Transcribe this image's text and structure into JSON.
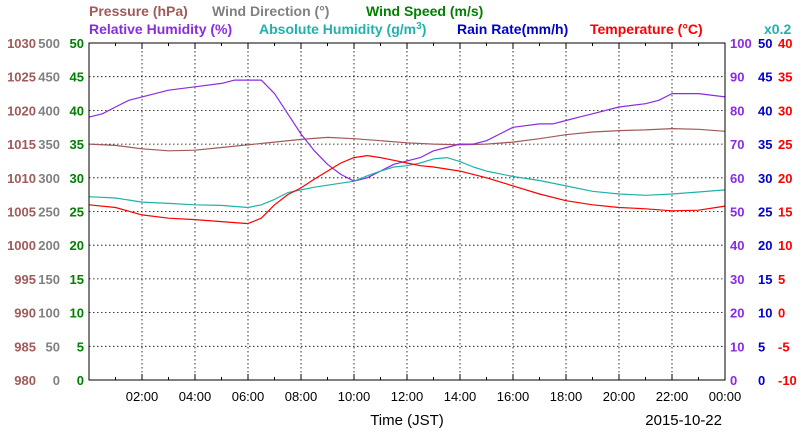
{
  "legend": {
    "row1": [
      {
        "key": "pressure",
        "text": "Pressure (hPa)",
        "color": "#a05a5a"
      },
      {
        "key": "wind_direction",
        "text": "Wind Direction (°)",
        "color": "#808080"
      },
      {
        "key": "wind_speed",
        "text": "Wind Speed (m/s)",
        "color": "#008000"
      }
    ],
    "row2": [
      {
        "key": "relative_humidity",
        "text": "Relative Humidity (%)",
        "color": "#8a2be2"
      },
      {
        "key": "absolute_humidity",
        "text": "Absolute Humidity (g/m",
        "sup": "3",
        "close": ")",
        "color": "#20b2aa"
      },
      {
        "key": "rain_rate",
        "text": "Rain Rate(mm/h)",
        "color": "#0000cc"
      },
      {
        "key": "temperature",
        "text": "Temperature (°C)",
        "color": "#ff0000"
      },
      {
        "key": "rain_scale",
        "text": "x0.2",
        "color": "#20b2aa"
      }
    ]
  },
  "x_axis_title": "Time (JST)",
  "date_label": "2015-10-22",
  "chart_data": {
    "type": "line",
    "xlabel": "Time (JST)",
    "x_ticks": [
      "02:00",
      "04:00",
      "06:00",
      "08:00",
      "10:00",
      "12:00",
      "14:00",
      "16:00",
      "18:00",
      "20:00",
      "22:00",
      "00:00"
    ],
    "xlim_hours": [
      0,
      24
    ],
    "grid": true,
    "y_axes": [
      {
        "key": "pressure",
        "ylabel": "Pressure (hPa)",
        "side": "left",
        "ticks": [
          "980",
          "985",
          "990",
          "995",
          "1000",
          "1005",
          "1010",
          "1015",
          "1020",
          "1025",
          "1030"
        ],
        "ylim": [
          980,
          1030
        ],
        "color": "#a05a5a"
      },
      {
        "key": "wind_direction",
        "ylabel": "Wind Direction (°)",
        "side": "left",
        "ticks": [
          "0",
          "50",
          "100",
          "150",
          "200",
          "250",
          "300",
          "350",
          "400",
          "450",
          "500"
        ],
        "ylim": [
          0,
          500
        ],
        "color": "#808080"
      },
      {
        "key": "wind_speed",
        "ylabel": "Wind Speed (m/s)",
        "side": "left",
        "ticks": [
          "0",
          "5",
          "10",
          "15",
          "20",
          "25",
          "30",
          "35",
          "40",
          "45",
          "50"
        ],
        "ylim": [
          0,
          50
        ],
        "color": "#008000"
      },
      {
        "key": "relative_humidity",
        "ylabel": "Relative Humidity (%)",
        "side": "right",
        "ticks": [
          "0",
          "10",
          "20",
          "30",
          "40",
          "50",
          "60",
          "70",
          "80",
          "90",
          "100"
        ],
        "ylim": [
          0,
          100
        ],
        "color": "#8a2be2"
      },
      {
        "key": "rain_rate",
        "ylabel": "Rain Rate(mm/h)",
        "side": "right",
        "ticks": [
          "0",
          "5",
          "10",
          "15",
          "20",
          "25",
          "30",
          "35",
          "40",
          "45",
          "50"
        ],
        "ylim": [
          0,
          50
        ],
        "color": "#0000cc"
      },
      {
        "key": "temperature",
        "ylabel": "Temperature (°C)",
        "side": "right",
        "ticks": [
          "-10",
          "-5",
          "0",
          "5",
          "10",
          "15",
          "20",
          "25",
          "30",
          "35",
          "40"
        ],
        "ylim": [
          -10,
          40
        ],
        "color": "#ff0000"
      }
    ],
    "series": [
      {
        "name": "Pressure (hPa)",
        "axis": "pressure",
        "color": "#a05a5a",
        "x_hours": [
          0,
          1,
          2,
          3,
          4,
          5,
          6,
          7,
          8,
          9,
          10,
          11,
          12,
          13,
          14,
          15,
          16,
          17,
          18,
          19,
          20,
          21,
          22,
          23,
          24
        ],
        "values": [
          1015.0,
          1014.8,
          1014.3,
          1014.0,
          1014.1,
          1014.5,
          1014.9,
          1015.3,
          1015.7,
          1016.0,
          1015.8,
          1015.5,
          1015.2,
          1015.0,
          1014.9,
          1015.0,
          1015.3,
          1015.8,
          1016.4,
          1016.8,
          1017.0,
          1017.1,
          1017.3,
          1017.2,
          1016.9
        ]
      },
      {
        "name": "Relative Humidity (%)",
        "axis": "relative_humidity",
        "color": "#8a2be2",
        "x_hours": [
          0,
          0.5,
          1,
          1.5,
          2,
          2.5,
          3,
          4,
          5,
          5.5,
          6,
          6.5,
          7,
          7.5,
          8,
          8.5,
          9,
          9.5,
          10,
          10.5,
          11,
          11.5,
          12,
          12.5,
          13,
          13.5,
          14,
          14.5,
          15,
          15.5,
          16,
          17,
          17.5,
          18,
          18.5,
          19,
          20,
          21,
          21.5,
          22,
          23,
          24
        ],
        "values": [
          78,
          79,
          81,
          83,
          84,
          85,
          86,
          87,
          88,
          89,
          89,
          89,
          85,
          79,
          73,
          68,
          64,
          61,
          59,
          60,
          62,
          64,
          65,
          66,
          68,
          69,
          70,
          70,
          71,
          73,
          75,
          76,
          76,
          77,
          78,
          79,
          81,
          82,
          83,
          85,
          85,
          84
        ]
      },
      {
        "name": "Absolute Humidity (g/m3)",
        "axis": "wind_speed",
        "color": "#20b2aa",
        "x_hours": [
          0,
          1,
          2,
          3,
          4,
          5,
          6,
          6.5,
          7,
          7.5,
          8,
          8.5,
          9,
          9.5,
          10,
          10.5,
          11,
          11.5,
          12,
          12.5,
          13,
          13.5,
          14,
          14.5,
          15,
          16,
          17,
          18,
          19,
          20,
          21,
          22,
          23,
          24
        ],
        "values": [
          27.2,
          27.0,
          26.4,
          26.2,
          26.0,
          25.9,
          25.6,
          26.0,
          26.8,
          27.8,
          28.2,
          28.6,
          28.9,
          29.2,
          29.5,
          30.3,
          31.0,
          31.6,
          31.8,
          32.2,
          32.8,
          33.0,
          32.4,
          31.6,
          31.0,
          30.2,
          29.6,
          28.8,
          28.0,
          27.6,
          27.4,
          27.6,
          27.9,
          28.2
        ]
      },
      {
        "name": "Temperature (°C)",
        "axis": "temperature",
        "color": "#ff0000",
        "x_hours": [
          0,
          1,
          2,
          3,
          4,
          5,
          6,
          6.5,
          7,
          7.5,
          8,
          8.5,
          9,
          9.5,
          10,
          10.5,
          11,
          11.5,
          12,
          12.5,
          13,
          14,
          15,
          16,
          17,
          18,
          19,
          20,
          21,
          22,
          23,
          24
        ],
        "values": [
          16.0,
          15.6,
          14.5,
          14.0,
          13.8,
          13.5,
          13.2,
          14.0,
          16.0,
          17.5,
          18.5,
          19.8,
          21.0,
          22.2,
          23.0,
          23.3,
          23.0,
          22.6,
          22.2,
          21.8,
          21.6,
          21.0,
          20.0,
          18.8,
          17.6,
          16.6,
          16.0,
          15.6,
          15.4,
          15.1,
          15.2,
          15.8
        ]
      }
    ]
  }
}
